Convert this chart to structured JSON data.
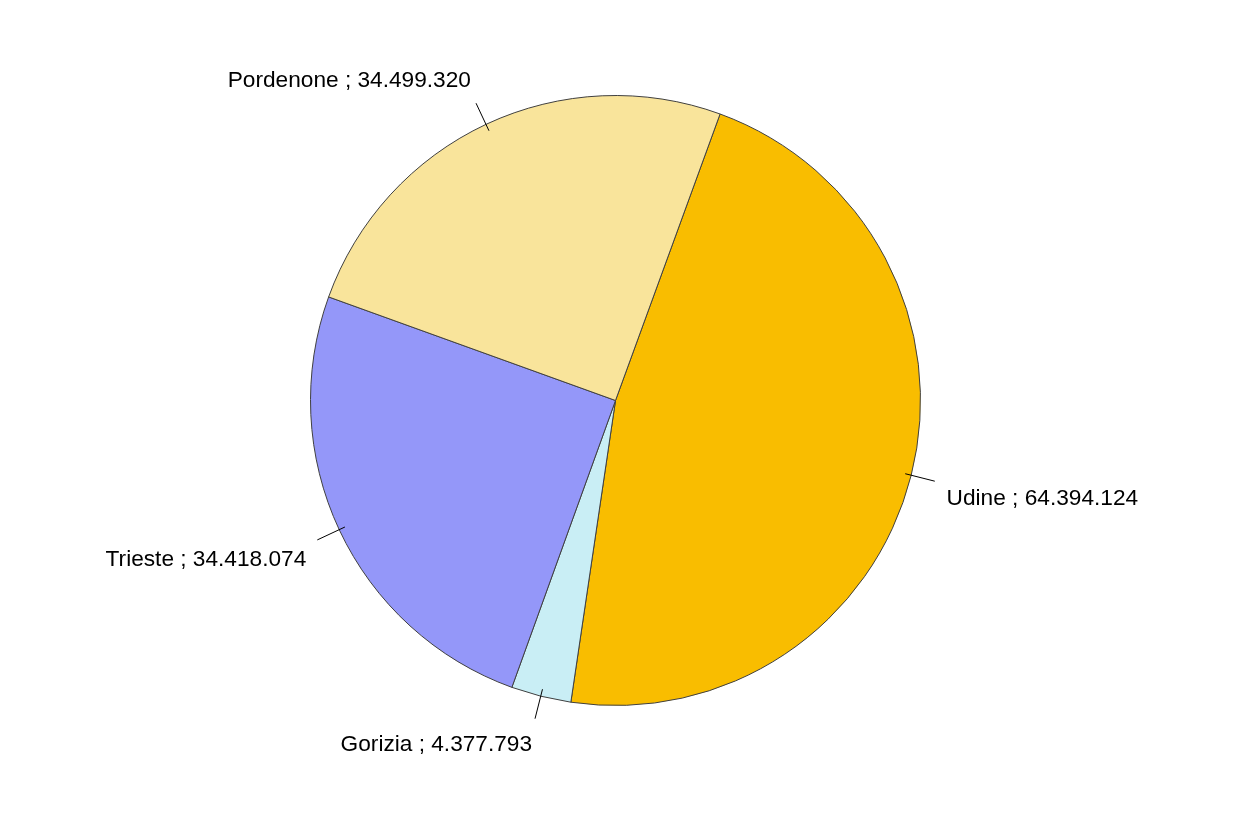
{
  "chart_data": {
    "type": "pie",
    "categories": [
      "Udine",
      "Gorizia",
      "Trieste",
      "Pordenone"
    ],
    "values": [
      64394124,
      4377793,
      34418074,
      34499320
    ],
    "value_labels": [
      "64.394.124",
      "4.377.793",
      "34.418.074",
      "34.499.320"
    ],
    "colors": [
      "#f9bd00",
      "#c9eef5",
      "#9497f9",
      "#f9e49b"
    ]
  }
}
